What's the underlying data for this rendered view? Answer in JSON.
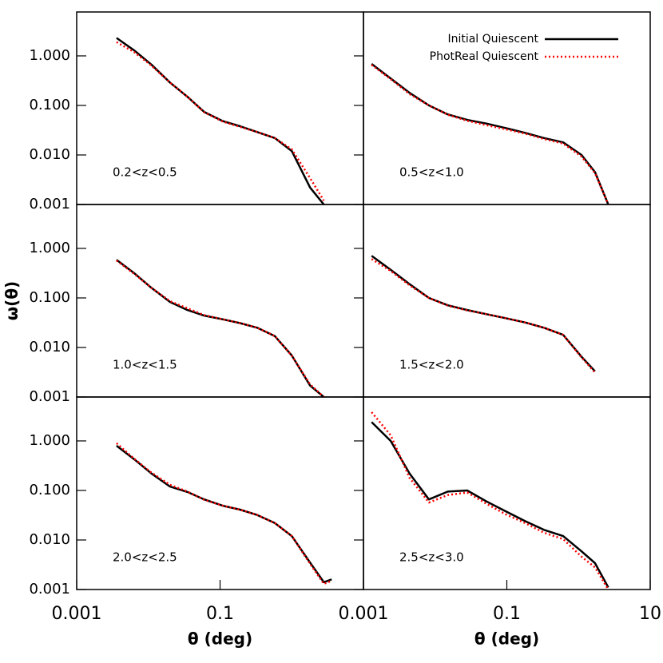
{
  "chart_data": [
    {
      "type": "line",
      "annotation": "0.2<z<0.5",
      "log_x": true,
      "log_y": true,
      "xlim": [
        0.001,
        10
      ],
      "ylim": [
        0.001,
        7.7
      ],
      "yticks": [
        {
          "value": 0.001,
          "label": "0.001"
        },
        {
          "value": 0.01,
          "label": "0.010"
        },
        {
          "value": 0.1,
          "label": "0.100"
        },
        {
          "value": 1,
          "label": "1.000"
        }
      ],
      "x": [
        0.0036,
        0.0063,
        0.011,
        0.02,
        0.035,
        0.06,
        0.11,
        0.19,
        0.33,
        0.58,
        1.0,
        1.8,
        2.8,
        3.6
      ],
      "series": [
        {
          "color": "#000000",
          "style": "solid",
          "values": [
            2.3,
            1.3,
            0.67,
            0.29,
            0.15,
            0.074,
            0.048,
            0.038,
            0.029,
            0.022,
            0.012,
            0.0022,
            0.001,
            null
          ]
        },
        {
          "color": "#ff0000",
          "style": "dotted",
          "values": [
            1.9,
            1.2,
            0.64,
            0.29,
            0.15,
            0.073,
            0.047,
            0.037,
            0.029,
            0.022,
            0.013,
            0.0034,
            0.0012,
            null
          ]
        }
      ]
    },
    {
      "type": "line",
      "annotation": "0.5<z<1.0",
      "log_x": true,
      "log_y": true,
      "xlim": [
        0.001,
        10
      ],
      "ylim": [
        0.001,
        7.7
      ],
      "x": [
        0.0013,
        0.0024,
        0.0044,
        0.0082,
        0.015,
        0.028,
        0.052,
        0.096,
        0.18,
        0.33,
        0.61,
        1.1,
        1.7,
        2.6
      ],
      "series": [
        {
          "name": "Initial Quiescent",
          "color": "#000000",
          "style": "solid",
          "values": [
            0.69,
            0.35,
            0.18,
            0.1,
            0.066,
            0.051,
            0.043,
            0.035,
            0.028,
            0.022,
            0.018,
            0.01,
            0.0045,
            0.001
          ]
        },
        {
          "name": "PhotReal Quiescent",
          "color": "#ff0000",
          "style": "dotted",
          "values": [
            0.66,
            0.34,
            0.17,
            0.1,
            0.065,
            0.049,
            0.04,
            0.033,
            0.027,
            0.021,
            0.017,
            0.0093,
            0.0043,
            0.001
          ]
        }
      ]
    },
    {
      "type": "line",
      "annotation": "1.0<z<1.5",
      "ylabel": "ω(θ)",
      "log_x": true,
      "log_y": true,
      "xlim": [
        0.001,
        10
      ],
      "ylim": [
        0.001,
        7.7
      ],
      "yticks": [
        {
          "value": 0.001,
          "label": "0.001"
        },
        {
          "value": 0.01,
          "label": "0.010"
        },
        {
          "value": 0.1,
          "label": "0.100"
        },
        {
          "value": 1,
          "label": "1.000"
        }
      ],
      "x": [
        0.0036,
        0.0063,
        0.011,
        0.02,
        0.035,
        0.06,
        0.11,
        0.19,
        0.33,
        0.58,
        1.0,
        1.8,
        2.8,
        3.6
      ],
      "series": [
        {
          "color": "#000000",
          "style": "solid",
          "values": [
            0.59,
            0.32,
            0.16,
            0.083,
            0.057,
            0.044,
            0.037,
            0.031,
            0.025,
            0.017,
            0.0069,
            0.0017,
            0.001,
            null
          ]
        },
        {
          "color": "#ff0000",
          "style": "dotted",
          "values": [
            0.57,
            0.31,
            0.16,
            0.086,
            0.062,
            0.045,
            0.037,
            0.031,
            0.025,
            0.017,
            0.0068,
            0.0018,
            0.001,
            null
          ]
        }
      ]
    },
    {
      "type": "line",
      "annotation": "1.5<z<2.0",
      "log_x": true,
      "log_y": true,
      "xlim": [
        0.001,
        10
      ],
      "ylim": [
        0.001,
        7.7
      ],
      "x": [
        0.0013,
        0.0024,
        0.0044,
        0.0082,
        0.015,
        0.028,
        0.052,
        0.096,
        0.18,
        0.33,
        0.61,
        1.1,
        1.7,
        2.6
      ],
      "series": [
        {
          "color": "#000000",
          "style": "solid",
          "values": [
            0.71,
            0.37,
            0.19,
            0.1,
            0.071,
            0.057,
            0.047,
            0.039,
            0.032,
            0.025,
            0.018,
            0.0065,
            0.0033,
            null
          ]
        },
        {
          "color": "#ff0000",
          "style": "dotted",
          "values": [
            0.61,
            0.35,
            0.18,
            0.1,
            0.07,
            0.056,
            0.047,
            0.039,
            0.032,
            0.025,
            0.018,
            0.0063,
            0.0031,
            null
          ]
        }
      ]
    },
    {
      "type": "line",
      "annotation": "2.0<z<2.5",
      "xlabel": "θ (deg)",
      "log_x": true,
      "log_y": true,
      "xlim": [
        0.001,
        10
      ],
      "ylim": [
        0.001,
        7.7
      ],
      "xticks": [
        0.001,
        0.1
      ],
      "yticks": [
        {
          "value": 0.001,
          "label": "0.001"
        },
        {
          "value": 0.01,
          "label": "0.010"
        },
        {
          "value": 0.1,
          "label": "0.100"
        },
        {
          "value": 1,
          "label": "1.000"
        }
      ],
      "x": [
        0.0036,
        0.0063,
        0.011,
        0.02,
        0.035,
        0.06,
        0.11,
        0.19,
        0.33,
        0.58,
        1.0,
        1.8,
        2.8,
        3.6
      ],
      "series": [
        {
          "color": "#000000",
          "style": "solid",
          "values": [
            0.8,
            0.43,
            0.22,
            0.12,
            0.093,
            0.066,
            0.049,
            0.041,
            0.032,
            0.022,
            0.012,
            0.0035,
            0.0014,
            0.0016
          ]
        },
        {
          "color": "#ff0000",
          "style": "dotted",
          "values": [
            0.9,
            0.44,
            0.23,
            0.13,
            0.095,
            0.065,
            0.049,
            0.041,
            0.032,
            0.022,
            0.012,
            0.0033,
            0.0013,
            0.0015
          ]
        }
      ]
    },
    {
      "type": "line",
      "annotation": "2.5<z<3.0",
      "xlabel": "θ (deg)",
      "log_x": true,
      "log_y": true,
      "xlim": [
        0.001,
        10
      ],
      "ylim": [
        0.001,
        7.7
      ],
      "xticks": [
        0.001,
        0.1,
        10
      ],
      "x": [
        0.0013,
        0.0024,
        0.0044,
        0.0082,
        0.015,
        0.028,
        0.052,
        0.096,
        0.18,
        0.33,
        0.61,
        1.1,
        1.7,
        2.6
      ],
      "series": [
        {
          "color": "#000000",
          "style": "solid",
          "values": [
            2.4,
            1.0,
            0.22,
            0.066,
            0.095,
            0.1,
            0.06,
            0.038,
            0.024,
            0.016,
            0.012,
            0.0059,
            0.0034,
            0.0011
          ]
        },
        {
          "color": "#ff0000",
          "style": "dotted",
          "values": [
            3.8,
            1.3,
            0.18,
            0.057,
            0.081,
            0.091,
            0.054,
            0.033,
            0.022,
            0.014,
            0.0104,
            0.0046,
            0.0028,
            0.001
          ]
        }
      ]
    }
  ]
}
